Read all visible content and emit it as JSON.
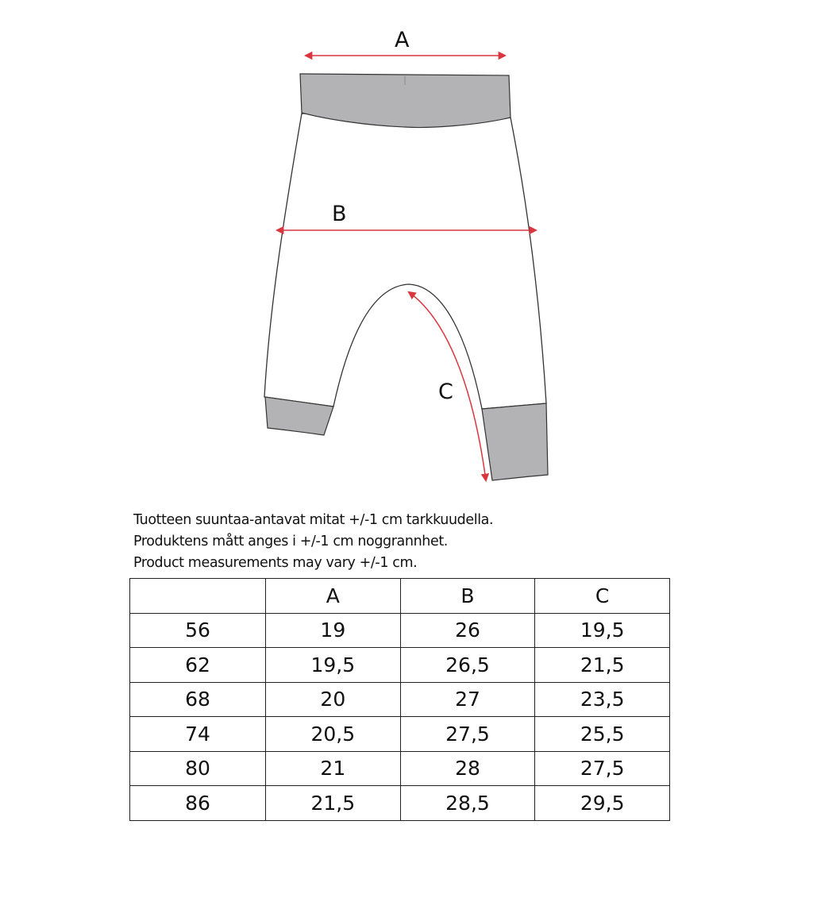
{
  "diagram": {
    "labels": {
      "a": "A",
      "b": "B",
      "c": "C"
    },
    "colors": {
      "arrow": "#d9363e",
      "band": "#b3b3b5",
      "outline": "#333333"
    }
  },
  "notes": [
    "Tuotteen suuntaa-antavat mitat +/-1 cm tarkkuudella.",
    "Produktens mått anges i +/-1 cm noggrannhet.",
    "Product measurements may vary +/-1 cm."
  ],
  "table": {
    "headers": [
      "",
      "A",
      "B",
      "C"
    ],
    "rows": [
      [
        "56",
        "19",
        "26",
        "19,5"
      ],
      [
        "62",
        "19,5",
        "26,5",
        "21,5"
      ],
      [
        "68",
        "20",
        "27",
        "23,5"
      ],
      [
        "74",
        "20,5",
        "27,5",
        "25,5"
      ],
      [
        "80",
        "21",
        "28",
        "27,5"
      ],
      [
        "86",
        "21,5",
        "28,5",
        "29,5"
      ]
    ]
  }
}
